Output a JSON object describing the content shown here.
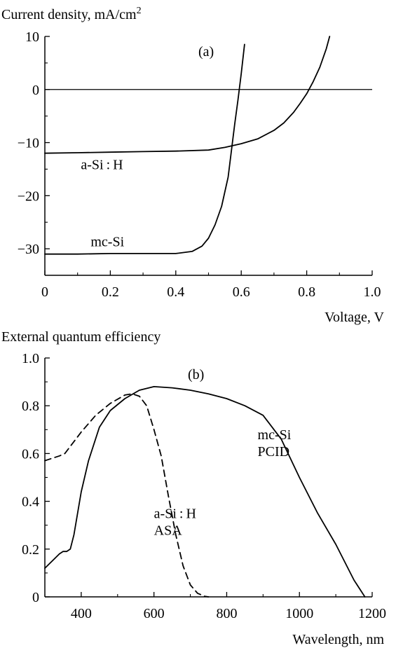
{
  "chart_data": [
    {
      "panel": "a",
      "type": "line",
      "panel_label": "(a)",
      "ylabel": "Current density, mA/cm",
      "ylabel_superscript": "2",
      "xlabel": "Voltage, V",
      "xlim": [
        0,
        1.0
      ],
      "ylim": [
        -35,
        10
      ],
      "xticks": [
        0,
        0.2,
        0.4,
        0.6,
        0.8,
        1.0
      ],
      "xtick_labels": [
        "0",
        "0.2",
        "0.4",
        "0.6",
        "0.8",
        "1.0"
      ],
      "yticks": [
        10,
        0,
        -10,
        -20,
        -30
      ],
      "ytick_labels": [
        "10",
        "0",
        "−10",
        "−20",
        "−30"
      ],
      "zero_line": true,
      "series": [
        {
          "name": "a-Si:H",
          "style": "solid",
          "x": [
            0,
            0.1,
            0.2,
            0.3,
            0.4,
            0.5,
            0.55,
            0.6,
            0.65,
            0.7,
            0.73,
            0.76,
            0.78,
            0.8,
            0.82,
            0.84,
            0.86,
            0.87
          ],
          "y": [
            -12.0,
            -11.9,
            -11.8,
            -11.7,
            -11.6,
            -11.4,
            -10.9,
            -10.2,
            -9.3,
            -7.7,
            -6.3,
            -4.3,
            -2.6,
            -0.8,
            1.5,
            4.2,
            7.7,
            10.0
          ]
        },
        {
          "name": "mc-Si",
          "style": "solid",
          "x": [
            0,
            0.1,
            0.2,
            0.3,
            0.4,
            0.45,
            0.48,
            0.5,
            0.52,
            0.54,
            0.56,
            0.57,
            0.58,
            0.59,
            0.6,
            0.61
          ],
          "y": [
            -31.0,
            -31.0,
            -30.9,
            -30.9,
            -30.9,
            -30.5,
            -29.5,
            -28.0,
            -25.5,
            -22.0,
            -16.5,
            -11.5,
            -6.5,
            -2.0,
            3.0,
            8.5
          ]
        }
      ],
      "annotations": [
        {
          "text": "a-Si : H",
          "x": 0.11,
          "y": -15
        },
        {
          "text": "mc-Si",
          "x": 0.14,
          "y": -29.5
        }
      ]
    },
    {
      "panel": "b",
      "type": "line",
      "panel_label": "(b)",
      "ylabel": "External quantum efficiency",
      "xlabel": "Wavelength, nm",
      "xlim": [
        300,
        1200
      ],
      "ylim": [
        0,
        1.0
      ],
      "xticks": [
        400,
        600,
        800,
        1000,
        1200
      ],
      "xtick_labels": [
        "400",
        "600",
        "800",
        "1000",
        "1200"
      ],
      "yticks": [
        0,
        0.2,
        0.4,
        0.6,
        0.8,
        1.0
      ],
      "ytick_labels": [
        "0",
        "0.2",
        "0.4",
        "0.6",
        "0.8",
        "1.0"
      ],
      "series": [
        {
          "name": "mc-Si PCID",
          "style": "solid",
          "x": [
            300,
            320,
            340,
            350,
            360,
            370,
            380,
            400,
            420,
            450,
            480,
            520,
            560,
            600,
            650,
            700,
            750,
            800,
            850,
            900,
            950,
            1000,
            1050,
            1100,
            1150,
            1180
          ],
          "y": [
            0.12,
            0.15,
            0.18,
            0.19,
            0.19,
            0.2,
            0.26,
            0.44,
            0.57,
            0.71,
            0.78,
            0.83,
            0.865,
            0.88,
            0.875,
            0.865,
            0.85,
            0.83,
            0.8,
            0.76,
            0.66,
            0.5,
            0.35,
            0.22,
            0.07,
            0.0
          ]
        },
        {
          "name": "a-Si:H ASA",
          "style": "dashed",
          "x": [
            300,
            320,
            340,
            355,
            370,
            400,
            440,
            480,
            520,
            540,
            560,
            580,
            600,
            620,
            640,
            660,
            680,
            700,
            720,
            740,
            750
          ],
          "y": [
            0.57,
            0.58,
            0.59,
            0.6,
            0.63,
            0.69,
            0.76,
            0.81,
            0.845,
            0.85,
            0.84,
            0.8,
            0.7,
            0.59,
            0.42,
            0.26,
            0.13,
            0.05,
            0.015,
            0.002,
            0.0
          ]
        }
      ],
      "annotations": [
        {
          "lines": [
            "mc-Si",
            "PCID"
          ],
          "x": 885,
          "y": 0.66
        },
        {
          "lines": [
            "a-Si : H",
            "ASA"
          ],
          "x": 600,
          "y": 0.33
        }
      ]
    }
  ]
}
